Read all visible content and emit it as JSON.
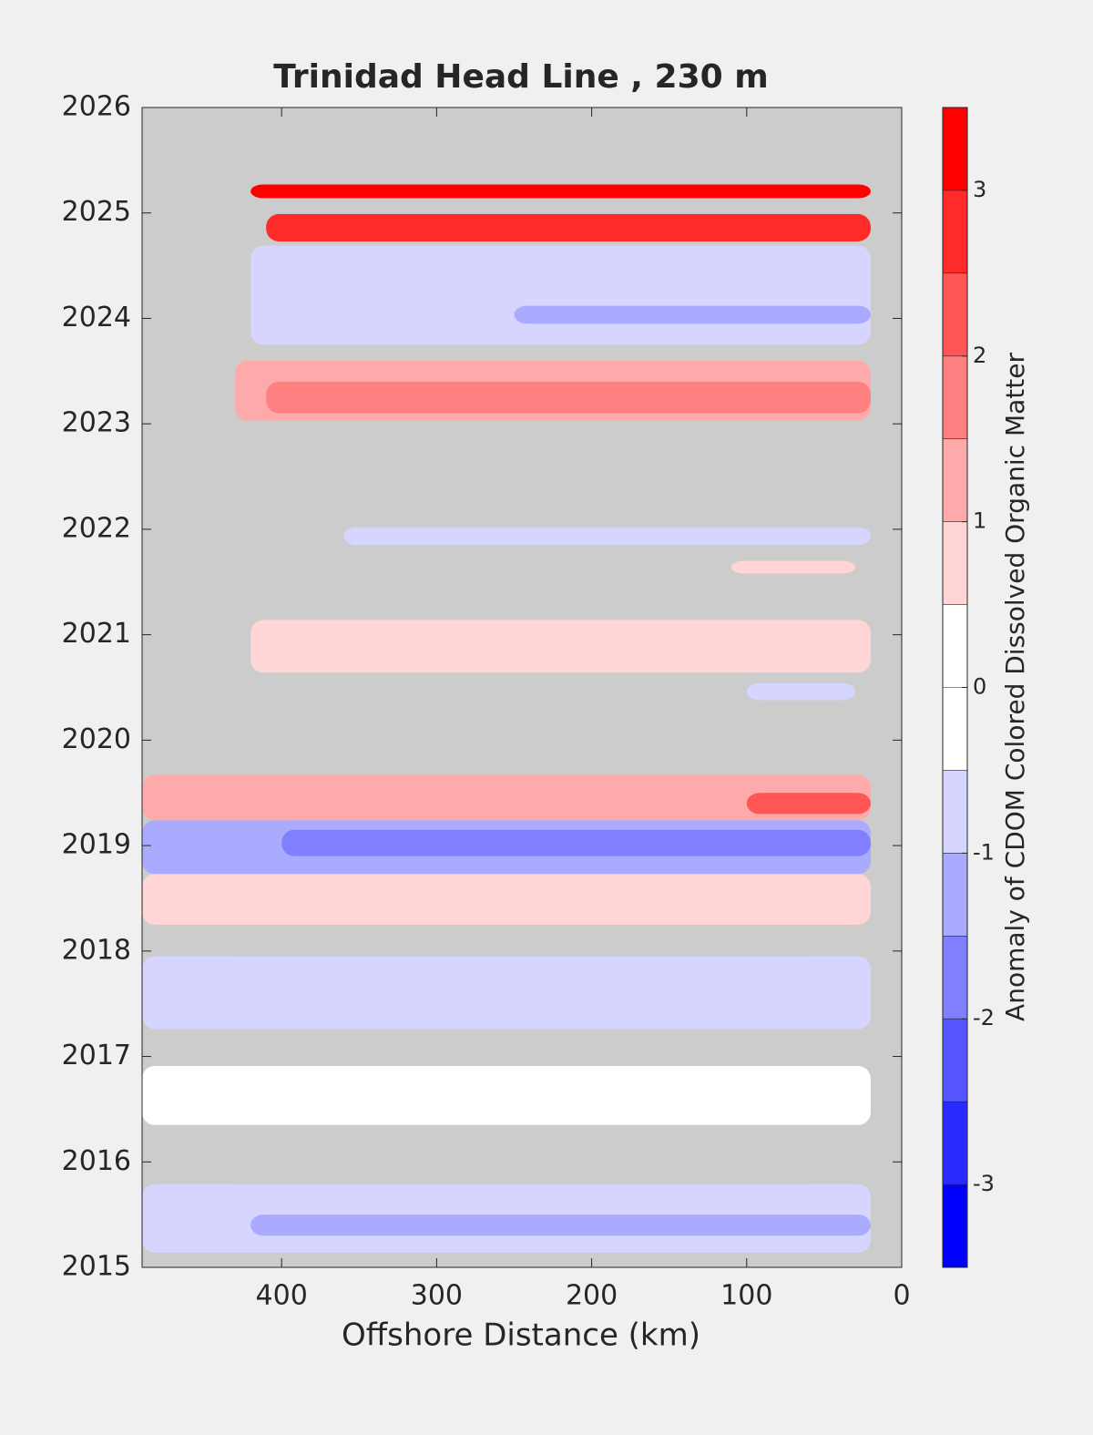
{
  "chart_data": {
    "type": "contour",
    "title": "Trinidad Head Line , 230 m",
    "xlabel": "Offshore Distance (km)",
    "colorbar_label": "Anomaly of CDOM Colored Dissolved Organic Matter",
    "xlim": [
      490,
      0
    ],
    "xticks": [
      400,
      300,
      200,
      100,
      0
    ],
    "ylim": [
      2015,
      2026
    ],
    "yticks": [
      2015,
      2016,
      2017,
      2018,
      2019,
      2020,
      2021,
      2022,
      2023,
      2024,
      2025,
      2026
    ],
    "clim": [
      -3.5,
      3.5
    ],
    "cticks": [
      -3,
      -2,
      -1,
      0,
      1,
      2,
      3
    ],
    "level_step": 0.5,
    "colormap": "blue-white-red",
    "features": [
      {
        "x": [
          420,
          20
        ],
        "y": [
          2025.14,
          2025.27
        ],
        "value": 3.2
      },
      {
        "x": [
          410,
          20
        ],
        "y": [
          2024.73,
          2024.99
        ],
        "value": 2.8
      },
      {
        "x": [
          420,
          20
        ],
        "y": [
          2023.75,
          2024.69
        ],
        "value": -0.5
      },
      {
        "x": [
          300,
          20
        ],
        "y": [
          2024.5,
          2024.6
        ],
        "value": -0.7
      },
      {
        "x": [
          250,
          20
        ],
        "y": [
          2023.95,
          2024.12
        ],
        "value": -1.0
      },
      {
        "x": [
          430,
          20
        ],
        "y": [
          2023.03,
          2023.6
        ],
        "value": 1.3
      },
      {
        "x": [
          410,
          20
        ],
        "y": [
          2023.1,
          2023.4
        ],
        "value": 1.7
      },
      {
        "x": [
          360,
          20
        ],
        "y": [
          2021.85,
          2022.02
        ],
        "value": -0.5
      },
      {
        "x": [
          110,
          30
        ],
        "y": [
          2021.58,
          2021.7
        ],
        "value": 0.7
      },
      {
        "x": [
          420,
          20
        ],
        "y": [
          2020.64,
          2021.14
        ],
        "value": 0.9
      },
      {
        "x": [
          100,
          30
        ],
        "y": [
          2020.38,
          2020.54
        ],
        "value": -0.6
      },
      {
        "x": [
          490,
          20
        ],
        "y": [
          2019.24,
          2019.67
        ],
        "value": 1.2
      },
      {
        "x": [
          100,
          20
        ],
        "y": [
          2019.3,
          2019.5
        ],
        "value": 2.2
      },
      {
        "x": [
          490,
          20
        ],
        "y": [
          2018.73,
          2019.24
        ],
        "value": -1.2
      },
      {
        "x": [
          400,
          20
        ],
        "y": [
          2018.9,
          2019.15
        ],
        "value": -1.8
      },
      {
        "x": [
          490,
          20
        ],
        "y": [
          2018.25,
          2018.73
        ],
        "value": 0.9
      },
      {
        "x": [
          490,
          20
        ],
        "y": [
          2017.26,
          2017.95
        ],
        "value": -0.6
      },
      {
        "x": [
          490,
          20
        ],
        "y": [
          2016.35,
          2016.91
        ],
        "value": -0.4
      },
      {
        "x": [
          490,
          20
        ],
        "y": [
          2015.14,
          2015.79
        ],
        "value": -0.6
      },
      {
        "x": [
          420,
          20
        ],
        "y": [
          2015.3,
          2015.5
        ],
        "value": -1.0
      }
    ]
  }
}
